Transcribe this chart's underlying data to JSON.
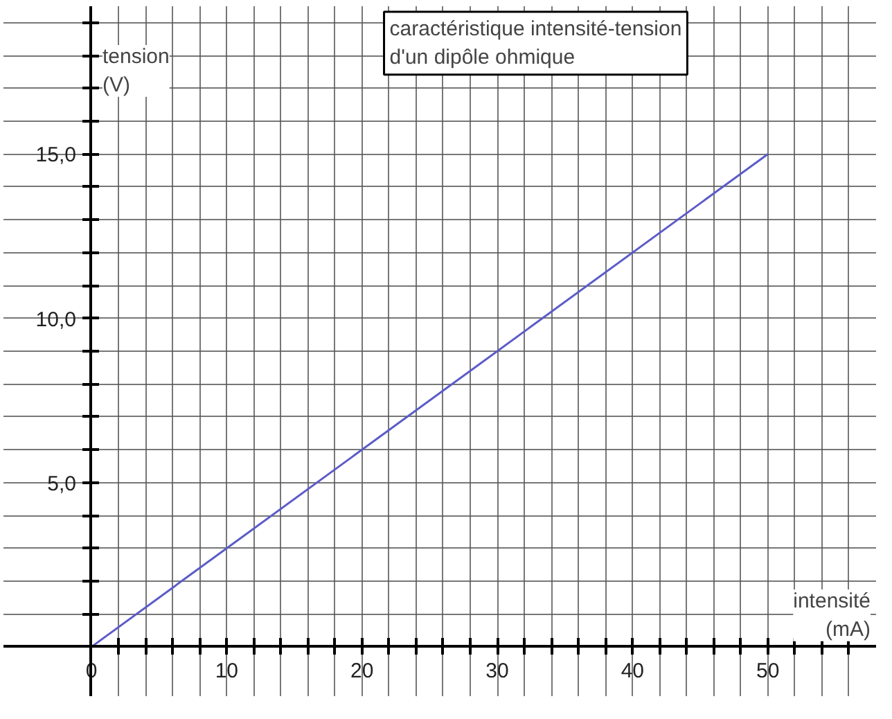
{
  "chart_data": {
    "type": "line",
    "title": "caractéristique intensité-tension\nd'un dipôle ohmique",
    "xlabel": "intensité\n(mA)",
    "ylabel": "tension\n(V)",
    "x": [
      0,
      50
    ],
    "series": [
      {
        "color": "#5b5bc8",
        "values": [
          0,
          15
        ]
      }
    ],
    "xlim": [
      -6.5,
      58
    ],
    "ylim": [
      -1.5,
      19.5
    ],
    "xticks": [
      0,
      {
        "value": 2,
        "label": null
      },
      {
        "value": 4,
        "label": null
      },
      {
        "value": 6,
        "label": null
      },
      {
        "value": 8,
        "label": null
      },
      10,
      {
        "value": 12,
        "label": null
      },
      {
        "value": 14,
        "label": null
      },
      {
        "value": 16,
        "label": null
      },
      {
        "value": 18,
        "label": null
      },
      20,
      {
        "value": 22,
        "label": null
      },
      {
        "value": 24,
        "label": null
      },
      {
        "value": 26,
        "label": null
      },
      {
        "value": 28,
        "label": null
      },
      30,
      {
        "value": 32,
        "label": null
      },
      {
        "value": 34,
        "label": null
      },
      {
        "value": 36,
        "label": null
      },
      {
        "value": 38,
        "label": null
      },
      40,
      {
        "value": 42,
        "label": null
      },
      {
        "value": 44,
        "label": null
      },
      {
        "value": 46,
        "label": null
      },
      {
        "value": 48,
        "label": null
      },
      50,
      {
        "value": 52,
        "label": null
      },
      {
        "value": 54,
        "label": null
      },
      {
        "value": 56,
        "label": null
      }
    ],
    "yticks": [
      {
        "value": 1,
        "label": null
      },
      {
        "value": 2,
        "label": null
      },
      {
        "value": 3,
        "label": null
      },
      {
        "value": 4,
        "label": null
      },
      {
        "value": 5,
        "label": "5,0"
      },
      {
        "value": 6,
        "label": null
      },
      {
        "value": 7,
        "label": null
      },
      {
        "value": 8,
        "label": null
      },
      {
        "value": 9,
        "label": null
      },
      {
        "value": 10,
        "label": "10,0"
      },
      {
        "value": 11,
        "label": null
      },
      {
        "value": 12,
        "label": null
      },
      {
        "value": 13,
        "label": null
      },
      {
        "value": 14,
        "label": null
      },
      {
        "value": 15,
        "label": "15,0"
      },
      {
        "value": 16,
        "label": null
      },
      {
        "value": 17,
        "label": null
      },
      {
        "value": 18,
        "label": null
      },
      {
        "value": 19,
        "label": null
      }
    ],
    "grid": true,
    "line_style": "solid",
    "marker": "none"
  }
}
